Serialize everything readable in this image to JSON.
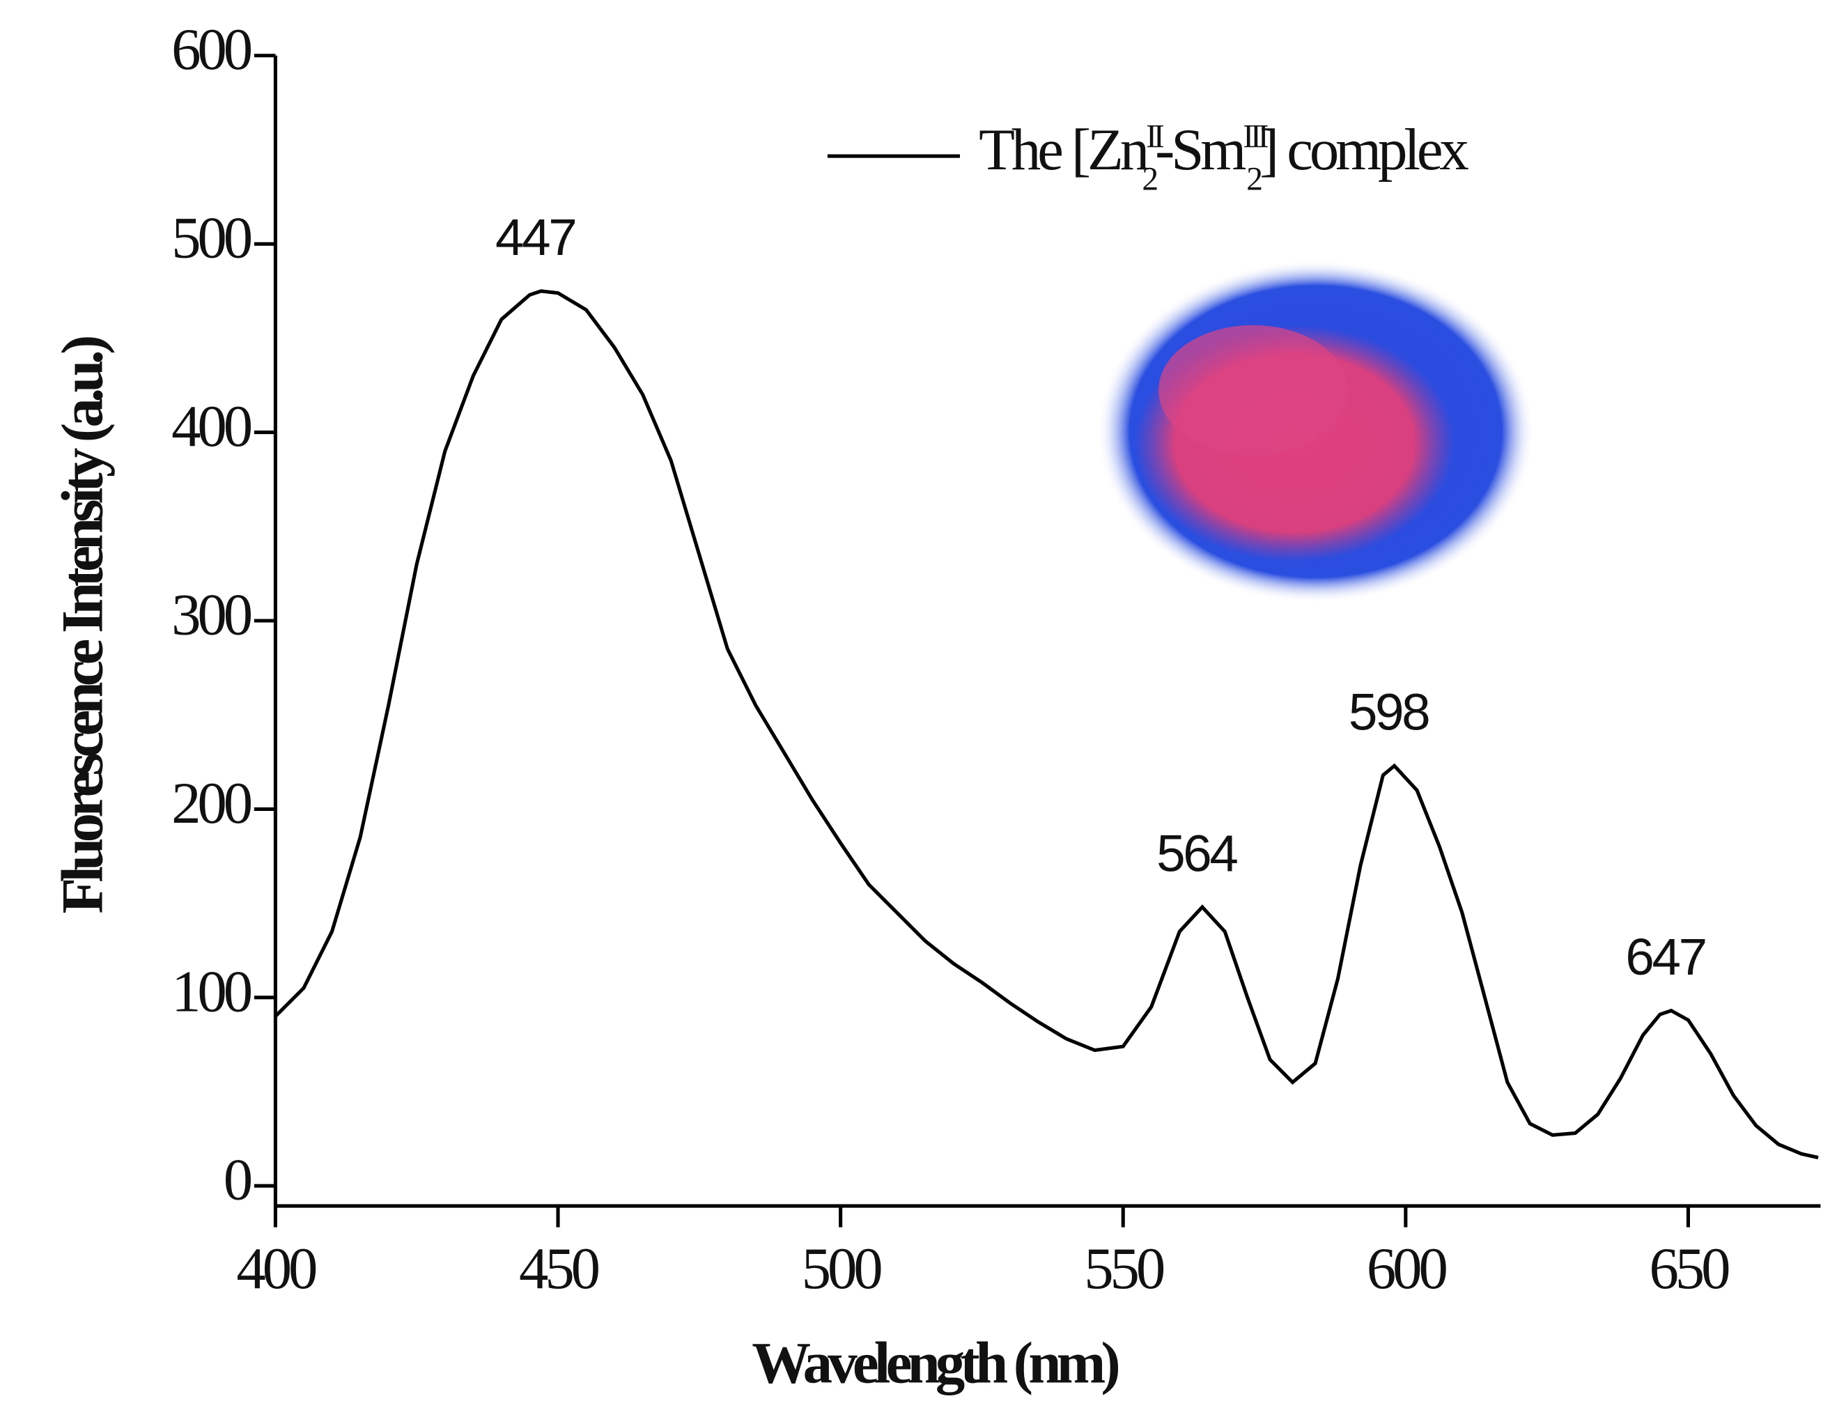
{
  "chart_data": {
    "type": "line",
    "xlabel": "Wavelength (nm)",
    "ylabel": "Fluorescence Intensity (a.u.)",
    "xlim": [
      400,
      673
    ],
    "ylim": [
      0,
      600
    ],
    "xticks": [
      400,
      450,
      500,
      550,
      600,
      650
    ],
    "yticks": [
      0,
      100,
      200,
      300,
      400,
      500,
      600
    ],
    "series": [
      {
        "name": [
          {
            "text": "The [Zn"
          },
          {
            "text": "II",
            "shift": "sup"
          },
          {
            "text": "2",
            "shift": "sub"
          },
          {
            "text": "-Sm"
          },
          {
            "text": "III",
            "shift": "sup"
          },
          {
            "text": "2",
            "shift": "sub"
          },
          {
            "text": "] complex"
          }
        ],
        "color": "#000000",
        "x": [
          400,
          405,
          410,
          415,
          420,
          425,
          430,
          435,
          440,
          445,
          447,
          450,
          455,
          460,
          465,
          470,
          475,
          480,
          485,
          490,
          495,
          500,
          505,
          510,
          515,
          520,
          525,
          530,
          535,
          540,
          545,
          550,
          555,
          560,
          564,
          568,
          572,
          576,
          580,
          584,
          588,
          592,
          596,
          598,
          602,
          606,
          610,
          614,
          618,
          622,
          626,
          630,
          634,
          638,
          642,
          645,
          647,
          650,
          654,
          658,
          662,
          666,
          670,
          673
        ],
        "values": [
          90,
          105,
          135,
          185,
          255,
          330,
          390,
          430,
          460,
          473,
          475,
          474,
          465,
          445,
          420,
          385,
          335,
          285,
          255,
          230,
          205,
          182,
          160,
          145,
          130,
          118,
          108,
          97,
          87,
          78,
          72,
          74,
          95,
          135,
          148,
          135,
          100,
          67,
          55,
          65,
          110,
          170,
          218,
          223,
          210,
          180,
          145,
          100,
          55,
          33,
          27,
          28,
          38,
          57,
          80,
          91,
          93,
          88,
          70,
          48,
          32,
          22,
          17,
          15
        ]
      }
    ],
    "annotations": [
      {
        "label": "447",
        "x": 447,
        "y": 475
      },
      {
        "label": "564",
        "x": 564,
        "y": 148
      },
      {
        "label": "598",
        "x": 598,
        "y": 223
      },
      {
        "label": "647",
        "x": 647,
        "y": 93
      }
    ]
  }
}
